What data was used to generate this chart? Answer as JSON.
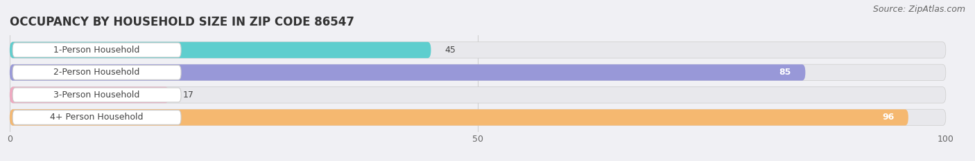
{
  "title": "OCCUPANCY BY HOUSEHOLD SIZE IN ZIP CODE 86547",
  "source": "Source: ZipAtlas.com",
  "categories": [
    "1-Person Household",
    "2-Person Household",
    "3-Person Household",
    "4+ Person Household"
  ],
  "values": [
    45,
    85,
    17,
    96
  ],
  "bar_colors": [
    "#5ecece",
    "#9898d8",
    "#f0a8c0",
    "#f5b870"
  ],
  "bar_bg_color": "#e8e8ec",
  "xlim": [
    0,
    100
  ],
  "xticks": [
    0,
    50,
    100
  ],
  "background_color": "#f0f0f4",
  "title_fontsize": 12,
  "source_fontsize": 9,
  "label_fontsize": 9,
  "value_fontsize": 9
}
